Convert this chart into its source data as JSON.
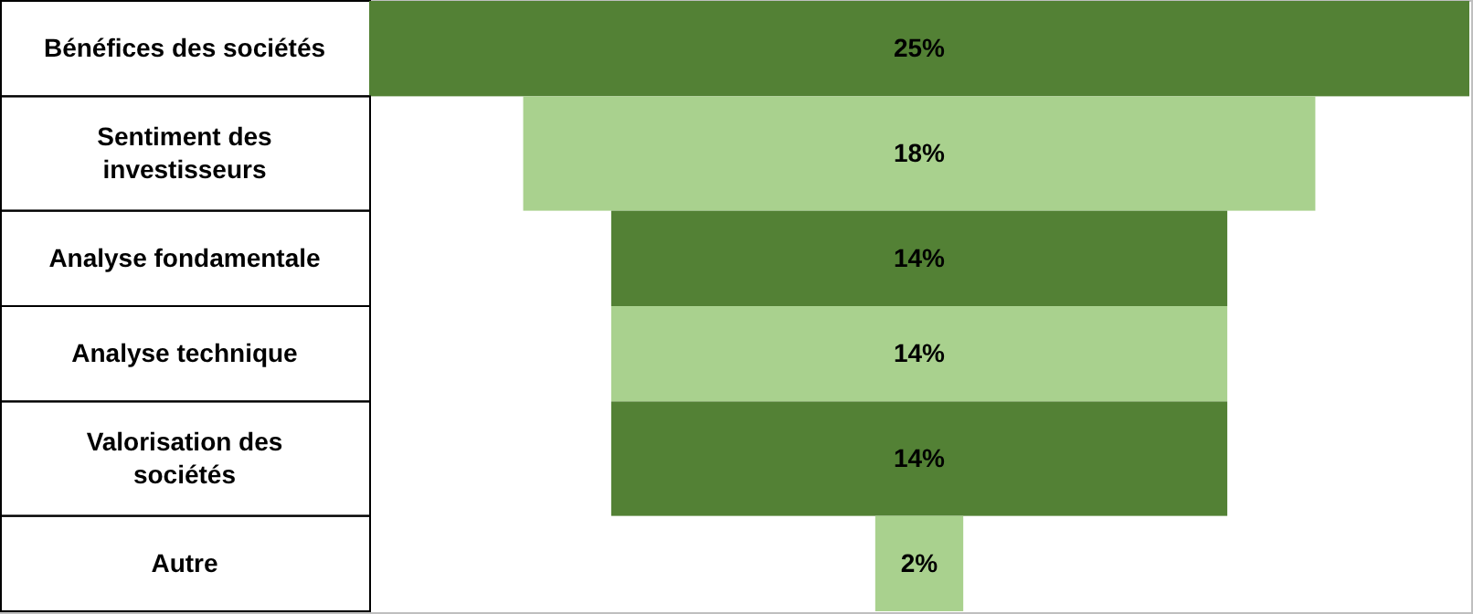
{
  "chart_data": {
    "type": "other",
    "categories": [
      "Bénéfices des sociétés",
      "Sentiment des investisseurs",
      "Analyse fondamentale",
      "Analyse technique",
      "Valorisation des sociétés",
      "Autre"
    ],
    "values": [
      25,
      18,
      14,
      14,
      14,
      2
    ],
    "colors": [
      "#538135",
      "#a9d18e",
      "#538135",
      "#a9d18e",
      "#538135",
      "#a9d18e"
    ],
    "value_labels": [
      "25%",
      "18%",
      "14%",
      "14%",
      "14%",
      "2%"
    ]
  }
}
